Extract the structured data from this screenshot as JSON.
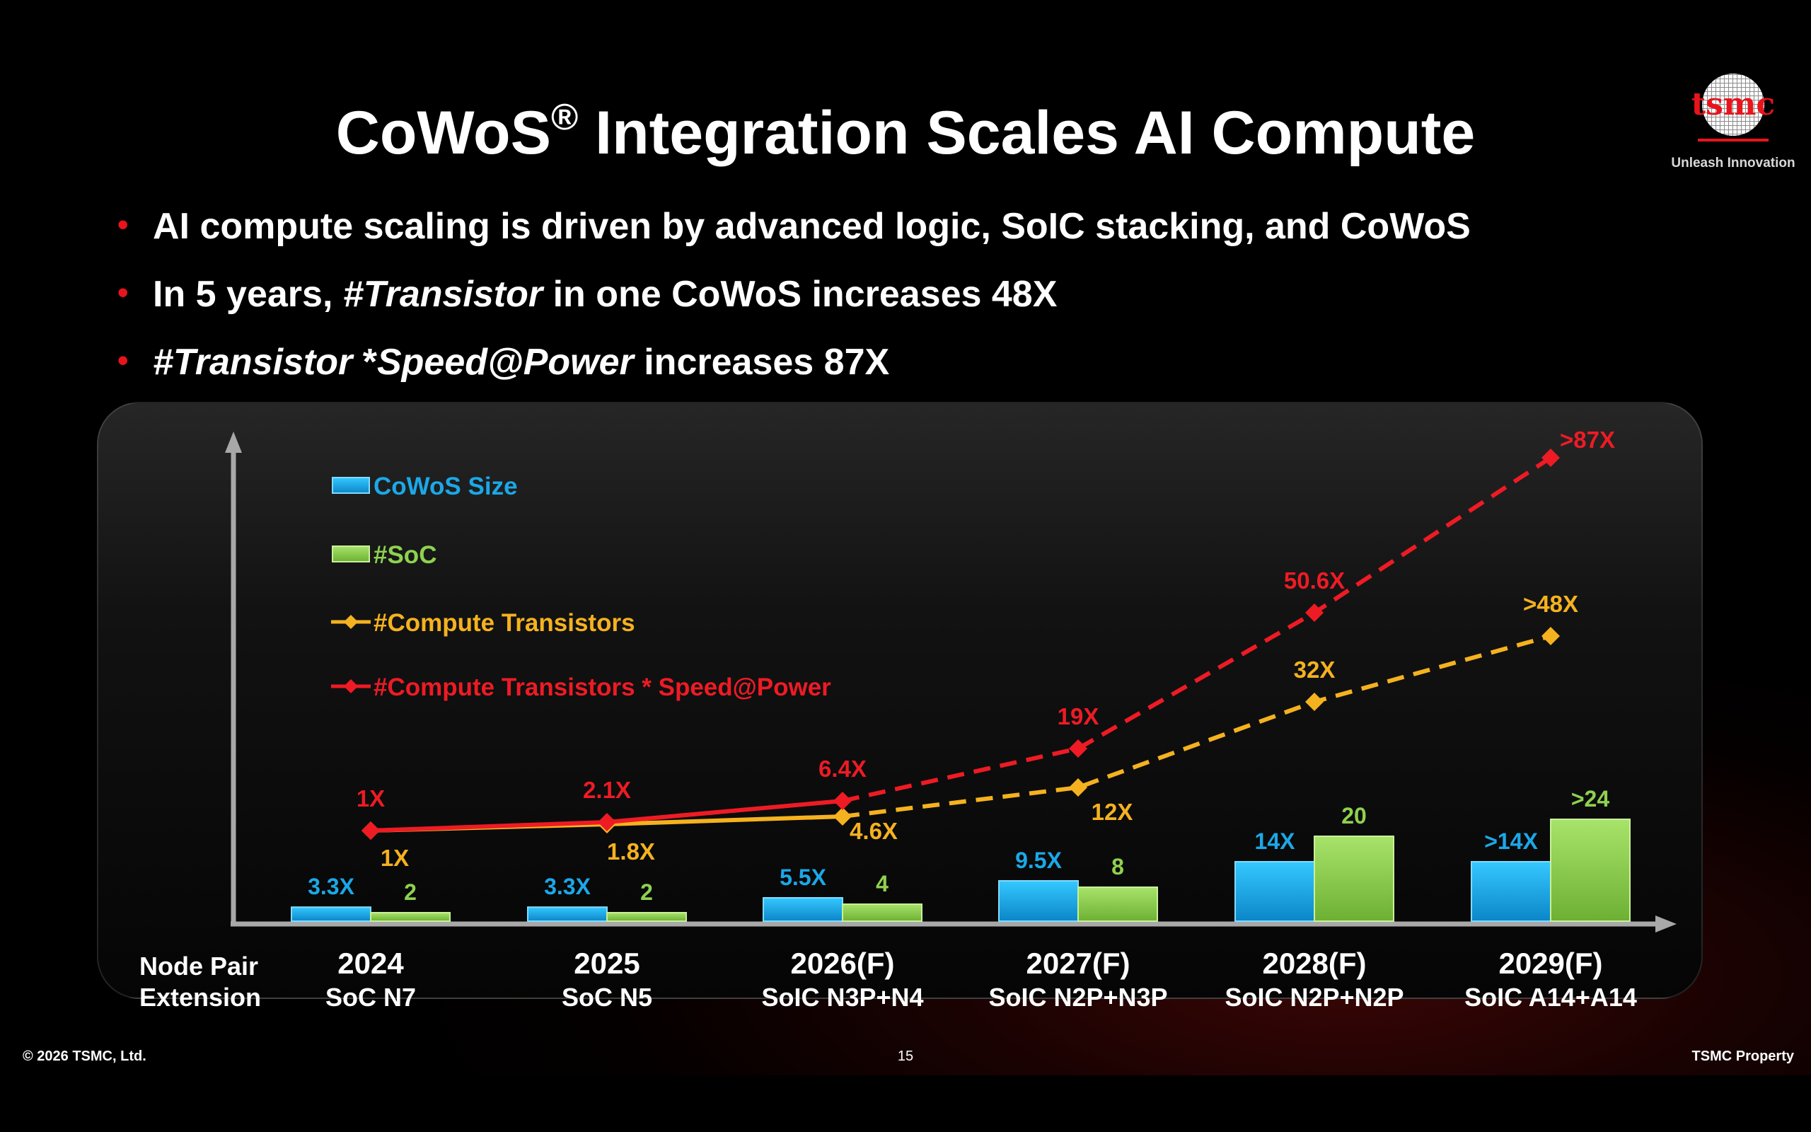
{
  "slide": {
    "title_main": "CoWoS",
    "title_reg": "®",
    "title_rest": " Integration Scales AI Compute",
    "bullets": {
      "b1": "AI compute scaling is driven by advanced logic, SoIC stacking, and CoWoS",
      "b2_pre": "In 5 years, ",
      "b2_em": "#Transistor",
      "b2_post": " in one CoWoS increases 48X",
      "b3_em": "#Transistor",
      "b3_mid": " *",
      "b3_em2": "Speed@Power",
      "b3_post": " increases 87X"
    },
    "logo_text": "tsmc",
    "tagline": "Unleash Innovation",
    "footer_left": "© 2026 TSMC, Ltd.",
    "footer_center": "15",
    "footer_right": "TSMC Property"
  },
  "colors": {
    "accent_red": "#e8141c",
    "cowos_blue": "#1ba8e8",
    "soc_green": "#8fd14f",
    "compute_yellow": "#f5b21f",
    "speed_red": "#ee1b24"
  },
  "chart_data": {
    "type": "bar",
    "row_header": [
      "Node Pair",
      "Extension"
    ],
    "categories": [
      "2024",
      "2025",
      "2026(F)",
      "2027(F)",
      "2028(F)",
      "2029(F)"
    ],
    "category_sublabels": [
      "SoC N7",
      "SoC N5",
      "SoIC N3P+N4",
      "SoIC N2P+N3P",
      "SoIC N2P+N2P",
      "SoIC A14+A14"
    ],
    "forecast_from_index": 2,
    "bar_series": [
      {
        "name": "CoWoS Size",
        "color": "#1ba8e8",
        "values": [
          3.3,
          3.3,
          5.5,
          9.5,
          14,
          14
        ],
        "labels": [
          "3.3X",
          "3.3X",
          "5.5X",
          "9.5X",
          "14X",
          ">14X"
        ]
      },
      {
        "name": "#SoC",
        "color": "#8fd14f",
        "values": [
          2,
          2,
          4,
          8,
          20,
          24
        ],
        "labels": [
          "2",
          "2",
          "4",
          "8",
          "20",
          ">24"
        ]
      }
    ],
    "line_series": [
      {
        "name": "#Compute Transistors",
        "color": "#f5b21f",
        "values": [
          1,
          1.8,
          4.6,
          12,
          32,
          48
        ],
        "labels": [
          "1X",
          "1.8X",
          "4.6X",
          "12X",
          "32X",
          ">48X"
        ]
      },
      {
        "name": "#Compute Transistors * Speed@Power",
        "color": "#ee1b24",
        "values": [
          1,
          2.1,
          6.4,
          19,
          50.6,
          87
        ],
        "labels": [
          "1X",
          "2.1X",
          "6.4X",
          "19X",
          "50.6X",
          ">87X"
        ]
      }
    ],
    "legend": "top-left",
    "grid": false
  }
}
